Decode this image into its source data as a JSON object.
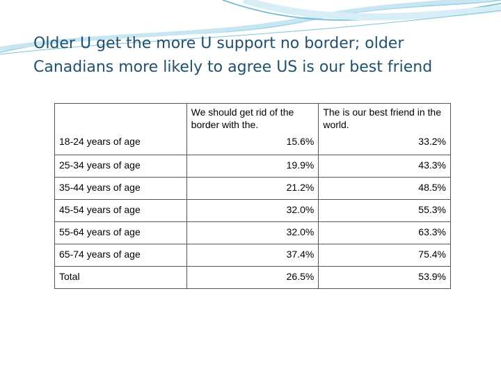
{
  "title": "Older U get the more U support no border; older Canadians more likely to agree US is our best friend",
  "table": {
    "header": [
      "We should get rid of the border with the.",
      "The is our best friend in the world."
    ],
    "rows": [
      [
        "18-24 years of age",
        "15.6%",
        "33.2%"
      ],
      [
        "25-34 years of age",
        "19.9%",
        "43.3%"
      ],
      [
        "35-44 years of age",
        "21.2%",
        "48.5%"
      ],
      [
        "45-54 years of age",
        "32.0%",
        "55.3%"
      ],
      [
        "55-64 years of age",
        "32.0%",
        "63.3%"
      ],
      [
        "65-74 years of age",
        "37.4%",
        "75.4%"
      ],
      [
        "Total",
        "26.5%",
        "53.9%"
      ]
    ]
  }
}
